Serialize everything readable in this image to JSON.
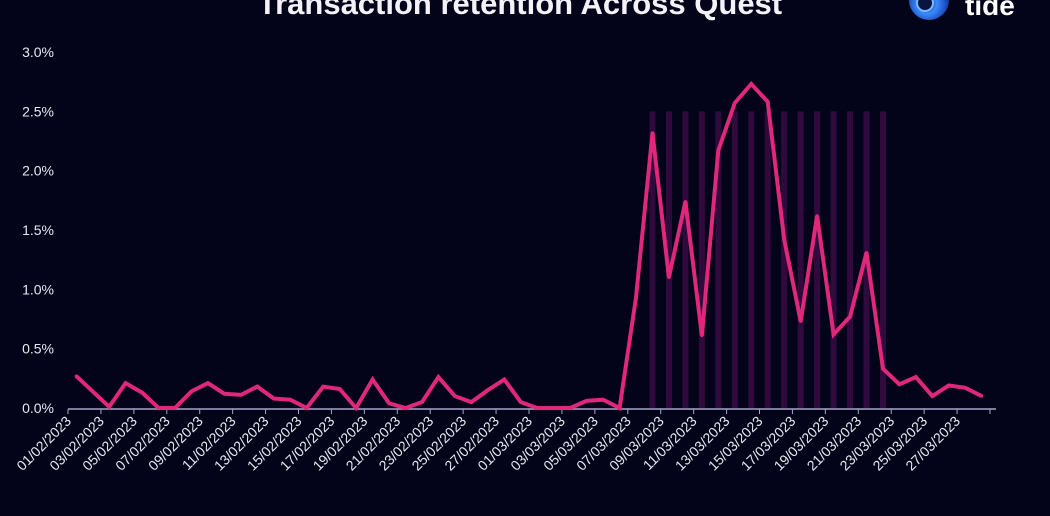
{
  "brand": {
    "name": "tide"
  },
  "chart_data": {
    "type": "line",
    "title": "Transaction retention Across Quest",
    "xlabel": "",
    "ylabel": "",
    "ylim": [
      0,
      3.0
    ],
    "y_ticks": [
      "0.0%",
      "0.5%",
      "1.0%",
      "1.5%",
      "2.0%",
      "2.5%",
      "3.0%"
    ],
    "y_tick_values": [
      0,
      0.5,
      1.0,
      1.5,
      2.0,
      2.5,
      3.0
    ],
    "x_tick_labels": [
      "01/02/2023",
      "03/02/2023",
      "05/02/2023",
      "07/02/2023",
      "09/02/2023",
      "11/02/2023",
      "13/02/2023",
      "15/02/2023",
      "17/02/2023",
      "19/02/2023",
      "21/02/2023",
      "23/02/2023",
      "25/02/2023",
      "27/02/2023",
      "01/03/2023",
      "03/03/2023",
      "05/03/2023",
      "07/03/2023",
      "09/03/2023",
      "11/03/2023",
      "13/03/2023",
      "15/03/2023",
      "17/03/2023",
      "19/03/2023",
      "21/03/2023",
      "23/03/2023",
      "25/03/2023",
      "27/03/2023"
    ],
    "grid": false,
    "line_color": "#e0287a",
    "highlight_color": "#3a0c44",
    "highlight": {
      "from_index": 35,
      "to_index": 49,
      "value": 2.5
    },
    "series": [
      {
        "name": "Transaction retention",
        "values": [
          0.27,
          0.14,
          0.01,
          0.21,
          0.13,
          0.0,
          0.0,
          0.14,
          0.21,
          0.12,
          0.11,
          0.18,
          0.08,
          0.07,
          0.0,
          0.18,
          0.16,
          0.0,
          0.24,
          0.04,
          0.0,
          0.05,
          0.26,
          0.1,
          0.05,
          0.15,
          0.24,
          0.05,
          0.0,
          0.0,
          0.0,
          0.06,
          0.07,
          0.0,
          0.93,
          2.32,
          1.1,
          1.74,
          0.61,
          2.17,
          2.57,
          2.73,
          2.58,
          1.42,
          0.73,
          1.62,
          0.62,
          0.77,
          1.31,
          0.33,
          0.2,
          0.26,
          0.1,
          0.19,
          0.17,
          0.1
        ]
      }
    ]
  }
}
